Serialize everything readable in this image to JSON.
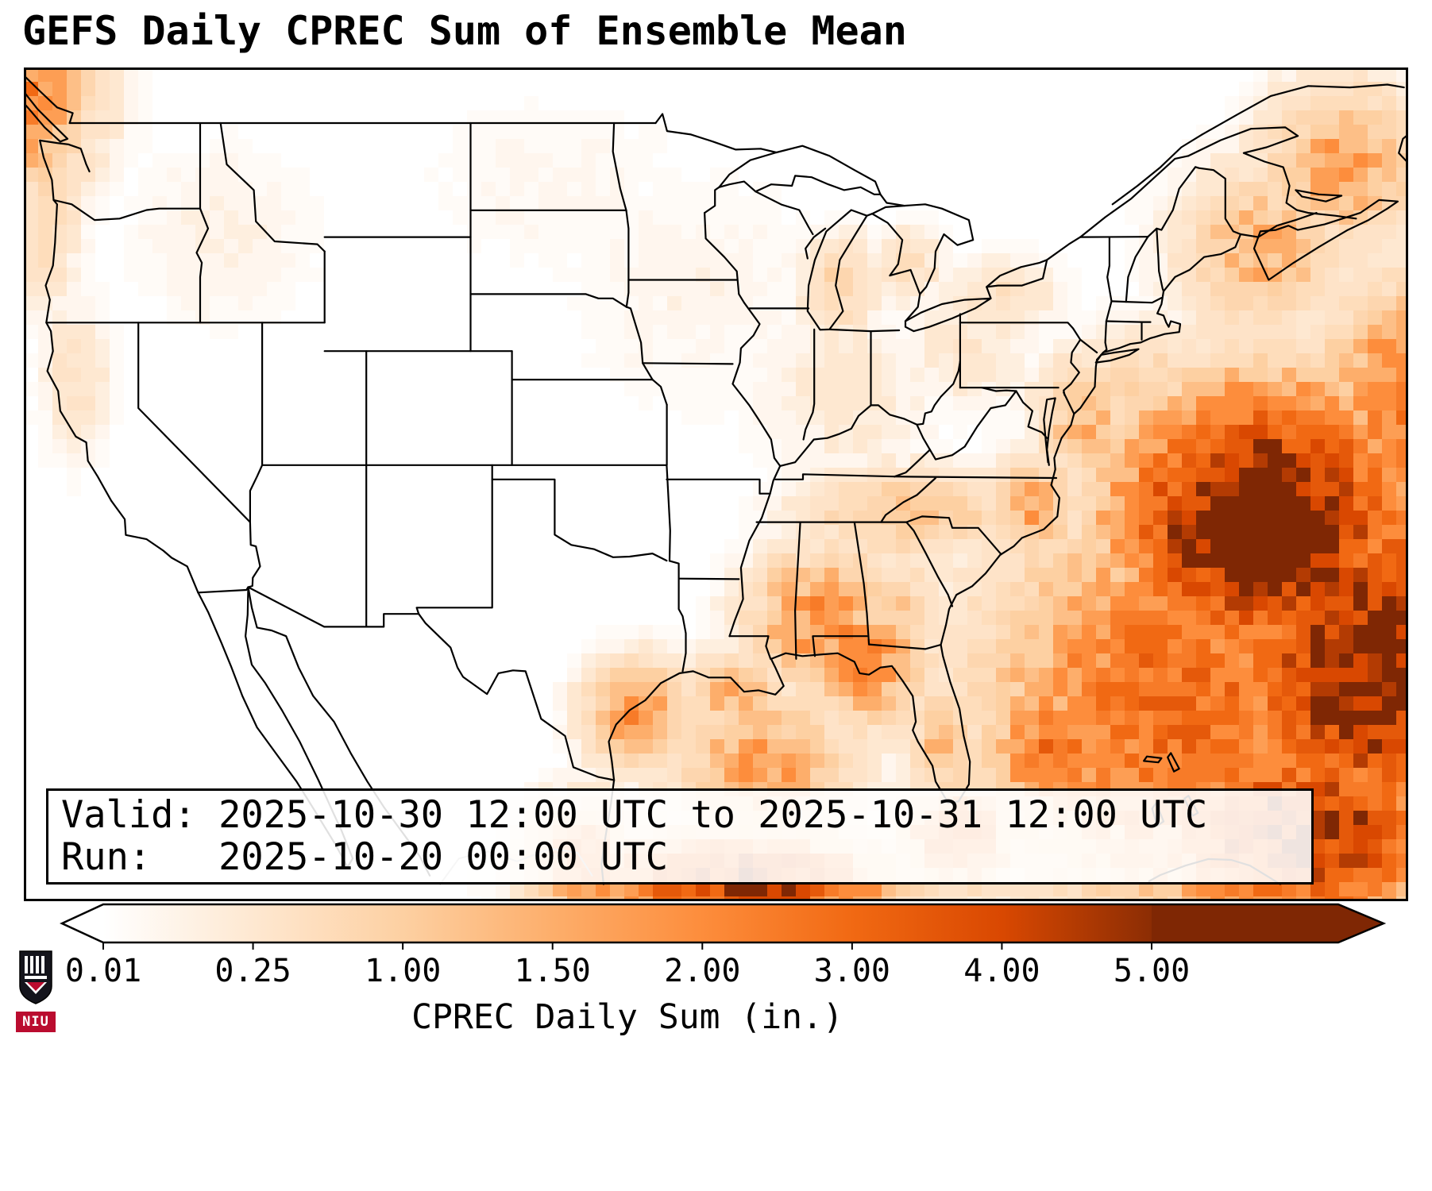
{
  "title": "GEFS Daily CPREC Sum of Ensemble Mean",
  "info_box": {
    "valid_line": "Valid: 2025-10-30 12:00 UTC to 2025-10-31 12:00 UTC",
    "run_line": "Run:   2025-10-20 00:00 UTC"
  },
  "colorbar": {
    "label": "CPREC Daily Sum (in.)",
    "ticks": [
      "0.01",
      "0.25",
      "1.00",
      "1.50",
      "2.00",
      "3.00",
      "4.00",
      "5.00"
    ],
    "tick_values": [
      0.01,
      0.25,
      1.0,
      1.5,
      2.0,
      3.0,
      4.0,
      5.0
    ],
    "tick_colors": [
      "#ffffff",
      "#fee8d1",
      "#fdd0a2",
      "#fdae6b",
      "#fd8d3c",
      "#f16913",
      "#d94801",
      "#8c2d04"
    ],
    "under_color": "#ffffff",
    "over_color": "#7f2704"
  },
  "logo": {
    "text": "NIU"
  },
  "chart_data": {
    "type": "heatmap",
    "title": "GEFS Daily CPREC Sum of Ensemble Mean",
    "variable": "CPREC Daily Sum",
    "units": "in.",
    "valid": "2025-10-30 12:00 UTC to 2025-10-31 12:00 UTC",
    "run": "2025-10-20 00:00 UTC",
    "colorbar_levels": [
      0.01,
      0.25,
      1.0,
      1.5,
      2.0,
      3.0,
      4.0,
      5.0
    ],
    "legend_position": "bottom",
    "notes": "Orange-shaded gridded precipitation over CONUS; heaviest (>4 in.) offshore the US Southeast Atlantic coast, strong band over the Gulf states and far southern Gulf of Mexico, moderate over Pacific Northwest corner and the lower Great Lakes, near-zero over the interior West and central Plains",
    "precip_blobs": [
      [
        -66,
        35,
        6,
        4,
        7
      ],
      [
        -60,
        30,
        7,
        5,
        6
      ],
      [
        -70,
        28.5,
        8,
        6,
        3.2
      ],
      [
        -64,
        24,
        6,
        3,
        5
      ],
      [
        -76,
        27,
        3,
        2.5,
        2.8
      ],
      [
        -80.5,
        24,
        2.5,
        1.5,
        3
      ],
      [
        -59,
        39,
        4,
        4,
        2.5
      ],
      [
        -91,
        22.3,
        6,
        1.5,
        5
      ],
      [
        -87,
        31.5,
        3.2,
        2.2,
        2.2
      ],
      [
        -85,
        30,
        2.5,
        2,
        2.3
      ],
      [
        -90,
        26.5,
        4,
        2.5,
        1.8
      ],
      [
        -96,
        28.3,
        2.2,
        1.6,
        2.2
      ],
      [
        -98.5,
        23,
        2.5,
        1.8,
        2.5
      ],
      [
        -91.5,
        29,
        2,
        1.2,
        1.6
      ],
      [
        -88.5,
        32.5,
        1.8,
        1.5,
        1.5
      ],
      [
        -83.5,
        32,
        1.8,
        1.5,
        1.2
      ],
      [
        -83,
        35.3,
        4.5,
        1.4,
        1.3
      ],
      [
        -77,
        35.5,
        2,
        1.5,
        1.8
      ],
      [
        -81.3,
        27.3,
        1.4,
        2,
        1.4
      ],
      [
        -74.5,
        38.5,
        2,
        2,
        1.5
      ],
      [
        -71.5,
        39.5,
        3,
        2,
        1
      ],
      [
        -66,
        44.5,
        3.5,
        2.5,
        1.6
      ],
      [
        -62,
        47.5,
        3.5,
        2.5,
        1.8
      ],
      [
        -86.3,
        43.3,
        1.6,
        1.6,
        0.9
      ],
      [
        -83,
        44,
        1.5,
        1.2,
        0.6
      ],
      [
        -78.5,
        43,
        2.5,
        1.2,
        0.5
      ],
      [
        -80,
        41,
        3,
        2,
        0.35
      ],
      [
        -86,
        39.5,
        4,
        3,
        0.3
      ],
      [
        -93,
        43,
        6,
        4,
        0.15
      ],
      [
        -100,
        47,
        6,
        3,
        0.12
      ],
      [
        -126.5,
        50,
        3.5,
        3,
        3
      ],
      [
        -124.5,
        46,
        1.5,
        3,
        0.8
      ],
      [
        -123,
        40,
        1.5,
        2.5,
        0.45
      ],
      [
        -116,
        45,
        4,
        3,
        0.2
      ]
    ]
  }
}
